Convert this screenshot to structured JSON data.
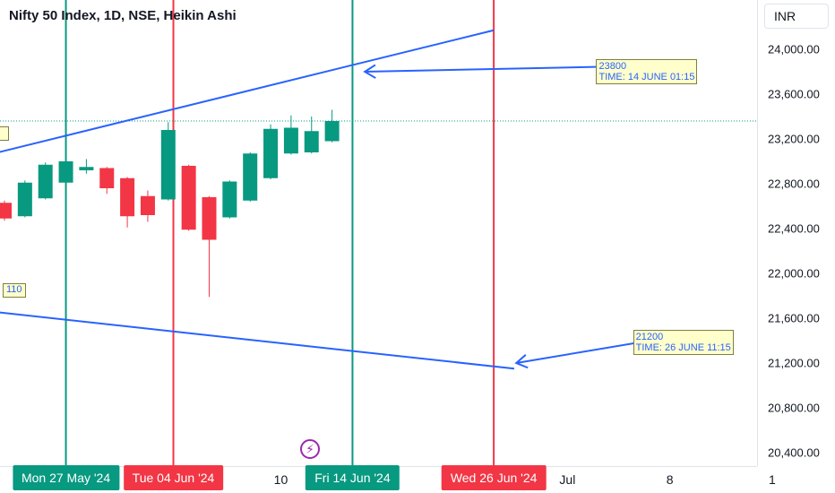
{
  "header": {
    "title": "Nifty 50 Index, 1D, NSE, Heikin Ashi",
    "currency": "INR"
  },
  "colors": {
    "up": "#089981",
    "down": "#f23645",
    "trendline": "#2962ff",
    "vline_green": "#089981",
    "vline_red": "#f23645",
    "note_bg": "#ffffcc"
  },
  "chart_data": {
    "type": "candlestick",
    "title": "Nifty 50 Index, 1D, NSE, Heikin Ashi",
    "ylim": [
      20200,
      24600
    ],
    "y_ticks": [
      {
        "value": 24000,
        "label": "24,000.00"
      },
      {
        "value": 23600,
        "label": "23,600.00"
      },
      {
        "value": 23200,
        "label": "23,200.00"
      },
      {
        "value": 22800,
        "label": "22,800.00"
      },
      {
        "value": 22400,
        "label": "22,400.00"
      },
      {
        "value": 22000,
        "label": "22,000.00"
      },
      {
        "value": 21600,
        "label": "21,600.00"
      },
      {
        "value": 21200,
        "label": "21,200.00"
      },
      {
        "value": 20800,
        "label": "20,800.00"
      },
      {
        "value": 20400,
        "label": "20,400.00"
      }
    ],
    "x_ticks": [
      {
        "label": "10",
        "index": 13.5
      },
      {
        "label": "Jul",
        "index": 27.5
      },
      {
        "label": "8",
        "index": 32.5
      },
      {
        "label": "1",
        "index": 37.5
      }
    ],
    "candles": [
      {
        "index": 0,
        "open": 22630,
        "close": 22490,
        "high": 22650,
        "low": 22470
      },
      {
        "index": 1,
        "open": 22510,
        "close": 22810,
        "high": 22830,
        "low": 22500
      },
      {
        "index": 2,
        "open": 22670,
        "close": 22970,
        "high": 22990,
        "low": 22660
      },
      {
        "index": 3,
        "open": 22810,
        "close": 23000,
        "high": 23030,
        "low": 22810
      },
      {
        "index": 4,
        "open": 22920,
        "close": 22950,
        "high": 23020,
        "low": 22890
      },
      {
        "index": 5,
        "open": 22940,
        "close": 22760,
        "high": 22950,
        "low": 22710
      },
      {
        "index": 6,
        "open": 22850,
        "close": 22510,
        "high": 22860,
        "low": 22410
      },
      {
        "index": 7,
        "open": 22690,
        "close": 22520,
        "high": 22740,
        "low": 22460
      },
      {
        "index": 8,
        "open": 22660,
        "close": 23280,
        "high": 23350,
        "low": 22650
      },
      {
        "index": 9,
        "open": 22960,
        "close": 22390,
        "high": 22970,
        "low": 22380
      },
      {
        "index": 10,
        "open": 22680,
        "close": 22300,
        "high": 22690,
        "low": 21790
      },
      {
        "index": 11,
        "open": 22500,
        "close": 22820,
        "high": 22830,
        "low": 22490
      },
      {
        "index": 12,
        "open": 22650,
        "close": 23070,
        "high": 23080,
        "low": 22640
      },
      {
        "index": 13,
        "open": 22850,
        "close": 23290,
        "high": 23330,
        "low": 22840
      },
      {
        "index": 14,
        "open": 23070,
        "close": 23300,
        "high": 23410,
        "low": 23060
      },
      {
        "index": 15,
        "open": 23080,
        "close": 23270,
        "high": 23400,
        "low": 23070
      },
      {
        "index": 16,
        "open": 23180,
        "close": 23360,
        "high": 23460,
        "low": 23170
      }
    ],
    "current_price_line": 23360,
    "vertical_lines": [
      {
        "label": "Mon 27 May '24",
        "index": 3,
        "color": "green"
      },
      {
        "label": "Tue 04 Jun '24",
        "index": 8.25,
        "color": "red"
      },
      {
        "label": "Fri 14 Jun '24",
        "index": 17,
        "color": "green"
      },
      {
        "label": "Wed 26 Jun '24",
        "index": 23.9,
        "color": "red"
      }
    ],
    "trendlines": [
      {
        "from": {
          "index": -3.2,
          "price": 22950
        },
        "to": {
          "index": 23.9,
          "price": 24170
        }
      },
      {
        "from": {
          "index": -3.2,
          "price": 21710
        },
        "to": {
          "index": 24.9,
          "price": 21150
        }
      }
    ],
    "annotations": [
      {
        "lines": [
          "23800",
          "TIME: 14 JUNE 01:15"
        ],
        "arrow_from": {
          "index": 30.7,
          "price": 23850
        },
        "arrow_to": {
          "index": 17.6,
          "price": 23800
        }
      },
      {
        "lines": [
          "21200",
          "TIME: 26 JUNE 11:15"
        ],
        "arrow_from": {
          "index": 32.5,
          "price": 21430
        },
        "arrow_to": {
          "index": 25,
          "price": 21200
        }
      }
    ],
    "edge_tags": [
      {
        "text": "",
        "price": 23250
      },
      {
        "text": "110",
        "price": 21850
      }
    ]
  }
}
